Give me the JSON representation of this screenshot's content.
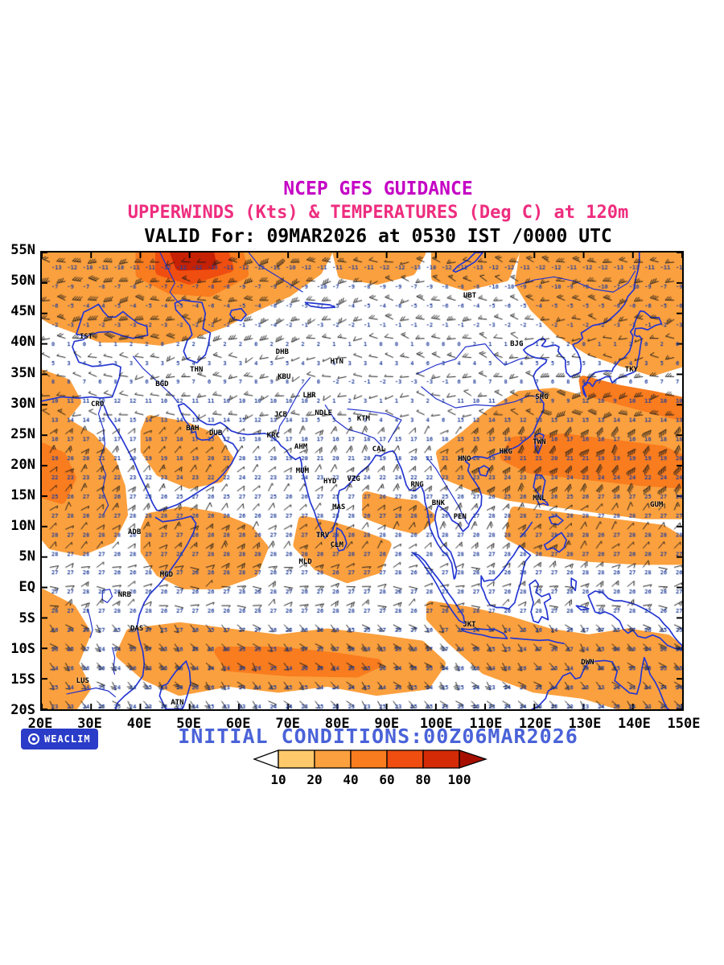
{
  "header": {
    "title_line1": "NCEP GFS GUIDANCE",
    "title_line2": "UPPERWINDS (Kts) & TEMPERATURES (Deg C) at 120m",
    "title_line3": "VALID For: 09MAR2026 at 0530 IST /0000 UTC"
  },
  "footer": {
    "logo_text": "WEACLIM",
    "initial_conditions": "INITIAL CONDITIONS:00Z06MAR2026"
  },
  "map": {
    "lat_labels": [
      "55N",
      "50N",
      "45N",
      "40N",
      "35N",
      "30N",
      "25N",
      "20N",
      "15N",
      "10N",
      "5N",
      "EQ",
      "5S",
      "10S",
      "15S",
      "20S"
    ],
    "lat_values": [
      55,
      50,
      45,
      40,
      35,
      30,
      25,
      20,
      15,
      10,
      5,
      0,
      -5,
      -10,
      -15,
      -20
    ],
    "lon_labels": [
      "20E",
      "30E",
      "40E",
      "50E",
      "60E",
      "70E",
      "80E",
      "90E",
      "100E",
      "110E",
      "120E",
      "130E",
      "140E",
      "150E"
    ],
    "lon_values": [
      20,
      30,
      40,
      50,
      60,
      70,
      80,
      90,
      100,
      110,
      120,
      130,
      140,
      150
    ],
    "stations": [
      {
        "label": "IST",
        "lon": 29.0,
        "lat": 41.2
      },
      {
        "label": "CRO",
        "lon": 31.3,
        "lat": 30.1
      },
      {
        "label": "BGD",
        "lon": 44.4,
        "lat": 33.3
      },
      {
        "label": "THN",
        "lon": 51.4,
        "lat": 35.7
      },
      {
        "label": "DHB",
        "lon": 68.8,
        "lat": 38.6
      },
      {
        "label": "KBU",
        "lon": 69.2,
        "lat": 34.5
      },
      {
        "label": "HTN",
        "lon": 79.9,
        "lat": 37.1
      },
      {
        "label": "LHR",
        "lon": 74.3,
        "lat": 31.5
      },
      {
        "label": "NDLE",
        "lon": 77.2,
        "lat": 28.6
      },
      {
        "label": "JCB",
        "lon": 68.5,
        "lat": 28.3
      },
      {
        "label": "BAH",
        "lon": 50.6,
        "lat": 26.1
      },
      {
        "label": "DUB",
        "lon": 55.3,
        "lat": 25.3
      },
      {
        "label": "KRC",
        "lon": 67.0,
        "lat": 24.9
      },
      {
        "label": "AHM",
        "lon": 72.6,
        "lat": 23.0
      },
      {
        "label": "KTM",
        "lon": 85.3,
        "lat": 27.7
      },
      {
        "label": "CAL",
        "lon": 88.4,
        "lat": 22.6
      },
      {
        "label": "BJG",
        "lon": 116.4,
        "lat": 39.9
      },
      {
        "label": "UBT",
        "lon": 106.9,
        "lat": 47.9
      },
      {
        "label": "SHG",
        "lon": 121.5,
        "lat": 31.2
      },
      {
        "label": "TKY",
        "lon": 139.7,
        "lat": 35.7
      },
      {
        "label": "TWN",
        "lon": 121.0,
        "lat": 23.8
      },
      {
        "label": "HKG",
        "lon": 114.2,
        "lat": 22.3
      },
      {
        "label": "HNO",
        "lon": 105.8,
        "lat": 21.0
      },
      {
        "label": "MUM",
        "lon": 72.9,
        "lat": 19.1
      },
      {
        "label": "HYD",
        "lon": 78.5,
        "lat": 17.4
      },
      {
        "label": "VZG",
        "lon": 83.3,
        "lat": 17.7
      },
      {
        "label": "RNG",
        "lon": 96.2,
        "lat": 16.8
      },
      {
        "label": "BNK",
        "lon": 100.5,
        "lat": 13.8
      },
      {
        "label": "PEN",
        "lon": 104.9,
        "lat": 11.6
      },
      {
        "label": "MNL",
        "lon": 121.0,
        "lat": 14.6
      },
      {
        "label": "GUM",
        "lon": 144.8,
        "lat": 13.5
      },
      {
        "label": "ADB",
        "lon": 38.8,
        "lat": 9.0
      },
      {
        "label": "MGD",
        "lon": 45.3,
        "lat": 2.0
      },
      {
        "label": "NRB",
        "lon": 36.8,
        "lat": -1.3
      },
      {
        "label": "DAS",
        "lon": 39.3,
        "lat": -6.8
      },
      {
        "label": "MAS",
        "lon": 80.3,
        "lat": 13.1
      },
      {
        "label": "TRV",
        "lon": 77.0,
        "lat": 8.5
      },
      {
        "label": "CLM",
        "lon": 79.9,
        "lat": 6.9
      },
      {
        "label": "MLD",
        "lon": 73.5,
        "lat": 4.2
      },
      {
        "label": "JKT",
        "lon": 106.8,
        "lat": -6.2
      },
      {
        "label": "DWN",
        "lon": 130.8,
        "lat": -12.4
      },
      {
        "label": "LUS",
        "lon": 28.3,
        "lat": -15.4
      },
      {
        "label": "ATN",
        "lon": 47.5,
        "lat": -18.9
      }
    ]
  },
  "legend": {
    "labels": [
      "10",
      "20",
      "40",
      "60",
      "80",
      "100"
    ],
    "colors": [
      "#FFFFFF",
      "#FDC96A",
      "#FBA03E",
      "#F97C1E",
      "#EF4E10",
      "#D42A06",
      "#A60F00"
    ]
  },
  "colors": {
    "title1": "#c400c4",
    "title2": "#ee2d7f",
    "initial_conditions": "#4a62d8",
    "logo_bg": "#2a3cc8",
    "coast": "#2436d2",
    "river": "#2333cc",
    "shade_light": "#FDC96A",
    "shade_main": "#FBA03E",
    "shade_mid": "#F97C1E",
    "shade_deep": "#EF4E10",
    "shade_dark": "#C62104",
    "barb": "#1d1d1d",
    "temp_number": "#24419c"
  }
}
